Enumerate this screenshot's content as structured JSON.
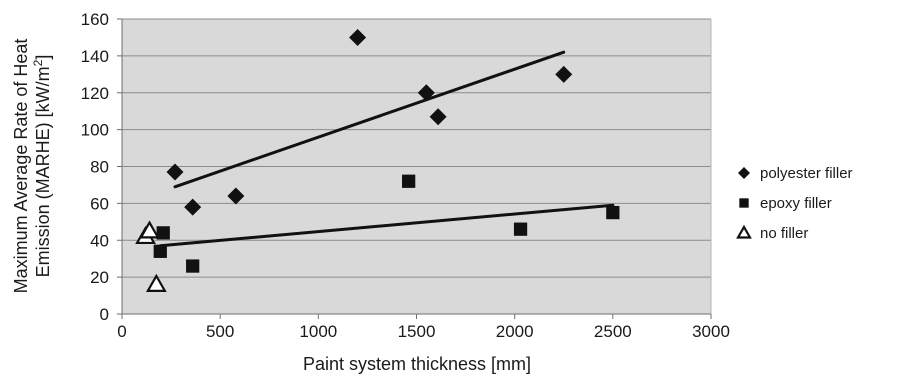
{
  "chart_data": {
    "type": "scatter",
    "xlabel": "Paint system thickness [mm]",
    "ylabel_line1": "Maximum Average Rate of Heat",
    "ylabel_line2": "Emission (MARHE) [kW/m",
    "ylabel_sup": "2",
    "ylabel_end": "]",
    "xlim": [
      0,
      3000
    ],
    "ylim": [
      0,
      160
    ],
    "xticks": [
      0,
      500,
      1000,
      1500,
      2000,
      2500,
      3000
    ],
    "yticks": [
      0,
      20,
      40,
      60,
      80,
      100,
      120,
      140,
      160
    ],
    "grid": true,
    "legend_position": "right",
    "plot_background": "#d9d9d9",
    "series": [
      {
        "name": "polyester filler",
        "marker": "diamond",
        "color": "#111111",
        "points": [
          [
            270,
            77
          ],
          [
            360,
            58
          ],
          [
            580,
            64
          ],
          [
            1200,
            150
          ],
          [
            1550,
            120
          ],
          [
            1610,
            107
          ],
          [
            2250,
            130
          ]
        ],
        "trendline": [
          [
            270,
            69
          ],
          [
            2250,
            142
          ]
        ]
      },
      {
        "name": "epoxy filler",
        "marker": "square",
        "color": "#111111",
        "points": [
          [
            195,
            34
          ],
          [
            210,
            44
          ],
          [
            360,
            26
          ],
          [
            1460,
            72
          ],
          [
            2030,
            46
          ],
          [
            2500,
            55
          ]
        ],
        "trendline": [
          [
            195,
            37
          ],
          [
            2500,
            59
          ]
        ]
      },
      {
        "name": "no filler",
        "marker": "triangle",
        "color": "#111111",
        "points": [
          [
            120,
            42
          ],
          [
            140,
            45
          ],
          [
            175,
            16
          ]
        ],
        "trendline": null
      }
    ]
  }
}
